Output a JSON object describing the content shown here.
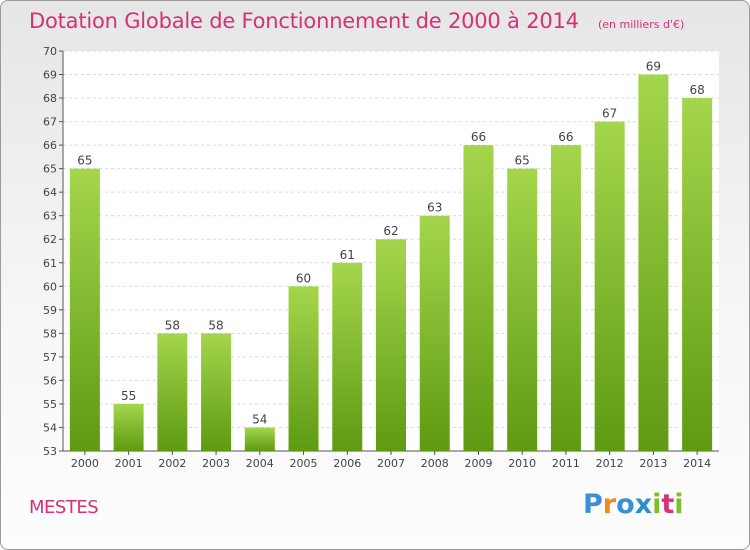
{
  "header": {
    "title": "Dotation Globale de Fonctionnement de 2000 à 2014",
    "subtitle": "(en milliers d'€)"
  },
  "footer": {
    "commune": "MESTES",
    "brand": "Proxiti"
  },
  "colors": {
    "bar_top": "#a4d64d",
    "bar_bottom": "#5e9a12",
    "title": "#d6307a",
    "grid": "#d9d9d9"
  },
  "chart_data": {
    "type": "bar",
    "title": "Dotation Globale de Fonctionnement de 2000 à 2014",
    "subtitle": "(en milliers d'€)",
    "categories": [
      "2000",
      "2001",
      "2002",
      "2003",
      "2004",
      "2005",
      "2006",
      "2007",
      "2008",
      "2009",
      "2010",
      "2011",
      "2012",
      "2013",
      "2014"
    ],
    "values": [
      65,
      55,
      58,
      58,
      54,
      60,
      61,
      62,
      63,
      66,
      65,
      66,
      67,
      69,
      68
    ],
    "ylim": [
      53,
      70
    ],
    "yticks": [
      53,
      54,
      55,
      56,
      57,
      58,
      59,
      60,
      61,
      62,
      63,
      64,
      65,
      66,
      67,
      68,
      69,
      70
    ],
    "xlabel": "",
    "ylabel": "",
    "grid": true,
    "data_labels": true
  }
}
